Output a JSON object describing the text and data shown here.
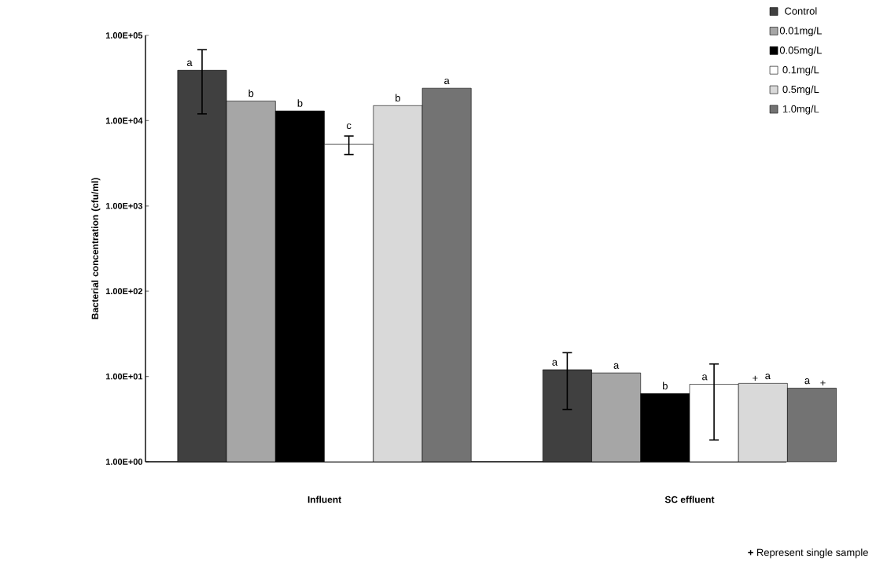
{
  "chart_data": {
    "type": "bar",
    "ylabel": "Bacterial concentration (cfu/ml)",
    "log": "y",
    "categories": [
      "Influent",
      "SC effluent"
    ],
    "series": [
      {
        "name": "Control",
        "color": "#404040",
        "values": [
          39000,
          12
        ],
        "errors": [
          [
            12000,
            68000
          ],
          [
            4.1,
            19
          ]
        ]
      },
      {
        "name": "0.01mg/L",
        "color": "#a6a6a6",
        "values": [
          17000,
          11
        ],
        "errors": [
          null,
          null
        ]
      },
      {
        "name": "0.05mg/L",
        "color": "#000000",
        "values": [
          13000,
          6.3
        ],
        "errors": [
          null,
          null
        ]
      },
      {
        "name": "0.1mg/L",
        "color": "#ffffff",
        "values": [
          5300,
          8.1
        ],
        "errors": [
          [
            4000,
            6600
          ],
          [
            1.8,
            14
          ]
        ]
      },
      {
        "name": "0.5mg/L",
        "color": "#d9d9d9",
        "values": [
          15000,
          8.3
        ],
        "errors": [
          null,
          null
        ]
      },
      {
        "name": "1.0mg/L",
        "color": "#737373",
        "values": [
          24000,
          7.3
        ],
        "errors": [
          null,
          null
        ]
      }
    ],
    "ylim": [
      1,
      100000
    ],
    "yticks": [
      {
        "value": 1,
        "label": "1.00E+00"
      },
      {
        "value": 10,
        "label": "1.00E+01"
      },
      {
        "value": 100,
        "label": "1.00E+02"
      },
      {
        "value": 1000,
        "label": "1.00E+03"
      },
      {
        "value": 10000,
        "label": "1.00E+04"
      },
      {
        "value": 100000,
        "label": "1.00E+05"
      }
    ],
    "grid": false,
    "legend": "top right",
    "annotations": [
      "a",
      "b",
      "b",
      "c",
      "b",
      "a",
      "a",
      "a",
      "b",
      "a",
      "a",
      "a",
      "+",
      "+",
      "**+** Represent single sample"
    ]
  }
}
